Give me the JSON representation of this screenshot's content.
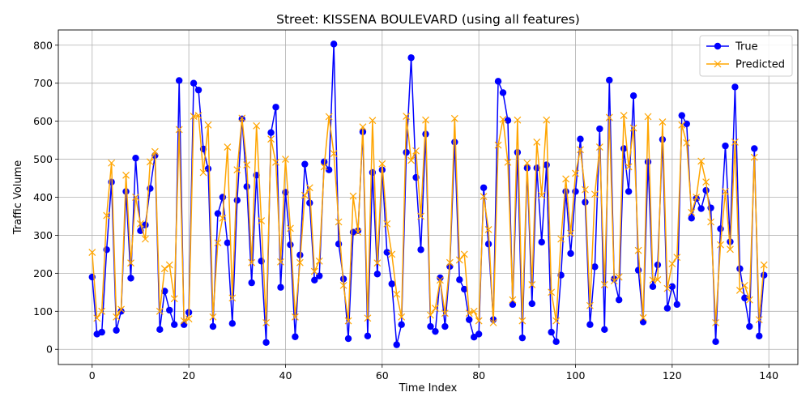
{
  "chart_data": {
    "type": "line",
    "title": "Street: KISSENA BOULEVARD (using all features)",
    "xlabel": "Time Index",
    "ylabel": "Traffic Volume",
    "xlim": [
      -7,
      146
    ],
    "ylim": [
      -40,
      840
    ],
    "xticks": [
      0,
      20,
      40,
      60,
      80,
      100,
      120,
      140
    ],
    "yticks": [
      0,
      100,
      200,
      300,
      400,
      500,
      600,
      700,
      800
    ],
    "grid": true,
    "legend_position": "top-right",
    "series": [
      {
        "name": "True",
        "color": "#0000ff",
        "marker": "circle",
        "values": [
          190,
          40,
          45,
          262,
          440,
          50,
          100,
          415,
          187,
          503,
          312,
          327,
          423,
          510,
          52,
          153,
          103,
          65,
          707,
          65,
          97,
          700,
          682,
          527,
          475,
          60,
          357,
          400,
          280,
          68,
          392,
          606,
          428,
          175,
          458,
          232,
          18,
          570,
          637,
          163,
          413,
          275,
          33,
          248,
          487,
          385,
          182,
          193,
          493,
          472,
          803,
          277,
          185,
          28,
          308,
          312,
          572,
          35,
          465,
          198,
          472,
          255,
          172,
          12,
          65,
          518,
          767,
          452,
          262,
          566,
          60,
          47,
          188,
          60,
          218,
          545,
          183,
          158,
          78,
          32,
          40,
          425,
          277,
          78,
          705,
          675,
          602,
          118,
          518,
          30,
          477,
          120,
          477,
          282,
          485,
          45,
          20,
          195,
          415,
          252,
          415,
          553,
          387,
          65,
          217,
          580,
          52,
          708,
          185,
          130,
          528,
          415,
          667,
          208,
          72,
          493,
          165,
          222,
          552,
          108,
          165,
          118,
          615,
          593,
          345,
          397,
          370,
          418,
          372,
          20,
          317,
          535,
          283,
          690,
          212,
          135,
          60,
          528,
          35,
          195
        ]
      },
      {
        "name": "Predicted",
        "color": "#ffa500",
        "marker": "x",
        "values": [
          255,
          82,
          100,
          352,
          490,
          85,
          105,
          458,
          227,
          400,
          330,
          290,
          493,
          520,
          100,
          212,
          222,
          133,
          578,
          75,
          80,
          613,
          615,
          465,
          590,
          85,
          280,
          345,
          532,
          135,
          472,
          608,
          485,
          228,
          588,
          338,
          70,
          553,
          492,
          230,
          500,
          318,
          85,
          228,
          405,
          425,
          205,
          232,
          480,
          612,
          515,
          335,
          168,
          75,
          403,
          308,
          585,
          82,
          602,
          227,
          488,
          330,
          250,
          145,
          85,
          613,
          497,
          522,
          350,
          603,
          90,
          108,
          182,
          95,
          228,
          607,
          235,
          250,
          95,
          100,
          75,
          402,
          315,
          70,
          537,
          605,
          492,
          130,
          603,
          75,
          490,
          170,
          545,
          405,
          603,
          150,
          75,
          290,
          448,
          305,
          463,
          525,
          420,
          115,
          408,
          532,
          170,
          610,
          180,
          190,
          615,
          480,
          582,
          260,
          83,
          612,
          182,
          183,
          598,
          160,
          225,
          242,
          590,
          543,
          360,
          400,
          495,
          440,
          335,
          70,
          275,
          415,
          263,
          545,
          155,
          168,
          130,
          505,
          78,
          222
        ]
      }
    ]
  }
}
